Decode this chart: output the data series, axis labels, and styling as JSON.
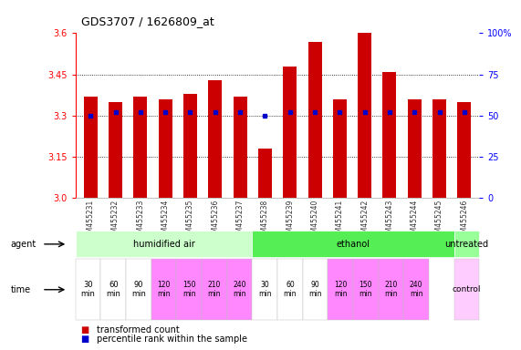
{
  "title": "GDS3707 / 1626809_at",
  "samples": [
    "GSM455231",
    "GSM455232",
    "GSM455233",
    "GSM455234",
    "GSM455235",
    "GSM455236",
    "GSM455237",
    "GSM455238",
    "GSM455239",
    "GSM455240",
    "GSM455241",
    "GSM455242",
    "GSM455243",
    "GSM455244",
    "GSM455245",
    "GSM455246"
  ],
  "transformed_count": [
    3.37,
    3.35,
    3.37,
    3.36,
    3.38,
    3.43,
    3.37,
    3.18,
    3.48,
    3.57,
    3.36,
    3.6,
    3.46,
    3.36,
    3.36,
    3.35
  ],
  "percentile_rank": [
    50,
    52,
    52,
    52,
    52,
    52,
    52,
    50,
    52,
    52,
    52,
    52,
    52,
    52,
    52,
    52
  ],
  "ylim": [
    3.0,
    3.6
  ],
  "yticks_left": [
    3.0,
    3.15,
    3.3,
    3.45,
    3.6
  ],
  "yticks_right_vals": [
    0,
    25,
    50,
    75,
    100
  ],
  "yticks_right_labels": [
    "0",
    "25",
    "50",
    "75",
    "100%"
  ],
  "bar_color": "#cc0000",
  "dot_color": "#0000cc",
  "agent_groups": [
    {
      "label": "humidified air",
      "start": 0,
      "end": 7,
      "color": "#ccffcc"
    },
    {
      "label": "ethanol",
      "start": 7,
      "end": 15,
      "color": "#55ee55"
    },
    {
      "label": "untreated",
      "start": 15,
      "end": 16,
      "color": "#99ff99"
    }
  ],
  "time_labels": [
    "30\nmin",
    "60\nmin",
    "90\nmin",
    "120\nmin",
    "150\nmin",
    "210\nmin",
    "240\nmin",
    "30\nmin",
    "60\nmin",
    "90\nmin",
    "120\nmin",
    "150\nmin",
    "210\nmin",
    "240\nmin"
  ],
  "time_colors": [
    "#ffffff",
    "#ffffff",
    "#ffffff",
    "#ff88ff",
    "#ff88ff",
    "#ff88ff",
    "#ff88ff",
    "#ffffff",
    "#ffffff",
    "#ffffff",
    "#ff88ff",
    "#ff88ff",
    "#ff88ff",
    "#ff88ff"
  ],
  "last_time_label": "control",
  "last_time_color": "#ffccff",
  "legend_red": "transformed count",
  "legend_blue": "percentile rank within the sample",
  "background_color": "#ffffff"
}
